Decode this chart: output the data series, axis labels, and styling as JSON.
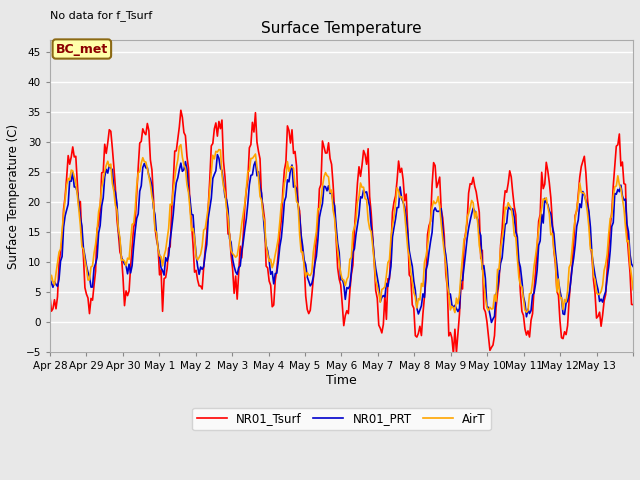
{
  "title": "Surface Temperature",
  "xlabel": "Time",
  "ylabel": "Surface Temperature (C)",
  "top_left_text": "No data for f_Tsurf",
  "annotation_text": "BC_met",
  "annotation_bg": "#FFFFAA",
  "annotation_border": "#8B6914",
  "annotation_text_color": "#8B0000",
  "ylim": [
    -5,
    47
  ],
  "yticks": [
    -5,
    0,
    5,
    10,
    15,
    20,
    25,
    30,
    35,
    40,
    45
  ],
  "x_tick_labels": [
    "Apr 28",
    "Apr 29",
    "Apr 30",
    "May 1",
    "May 2",
    "May 3",
    "May 4",
    "May 5",
    "May 6",
    "May 7",
    "May 8",
    "May 9",
    "May 10",
    "May 11",
    "May 12",
    "May 13"
  ],
  "line_colors": {
    "NR01_Tsurf": "#FF0000",
    "NR01_PRT": "#0000CC",
    "AirT": "#FFA500"
  },
  "line_widths": {
    "NR01_Tsurf": 1.2,
    "NR01_PRT": 1.2,
    "AirT": 1.2
  },
  "bg_color": "#E8E8E8",
  "n_days": 16,
  "samples_per_day": 24
}
